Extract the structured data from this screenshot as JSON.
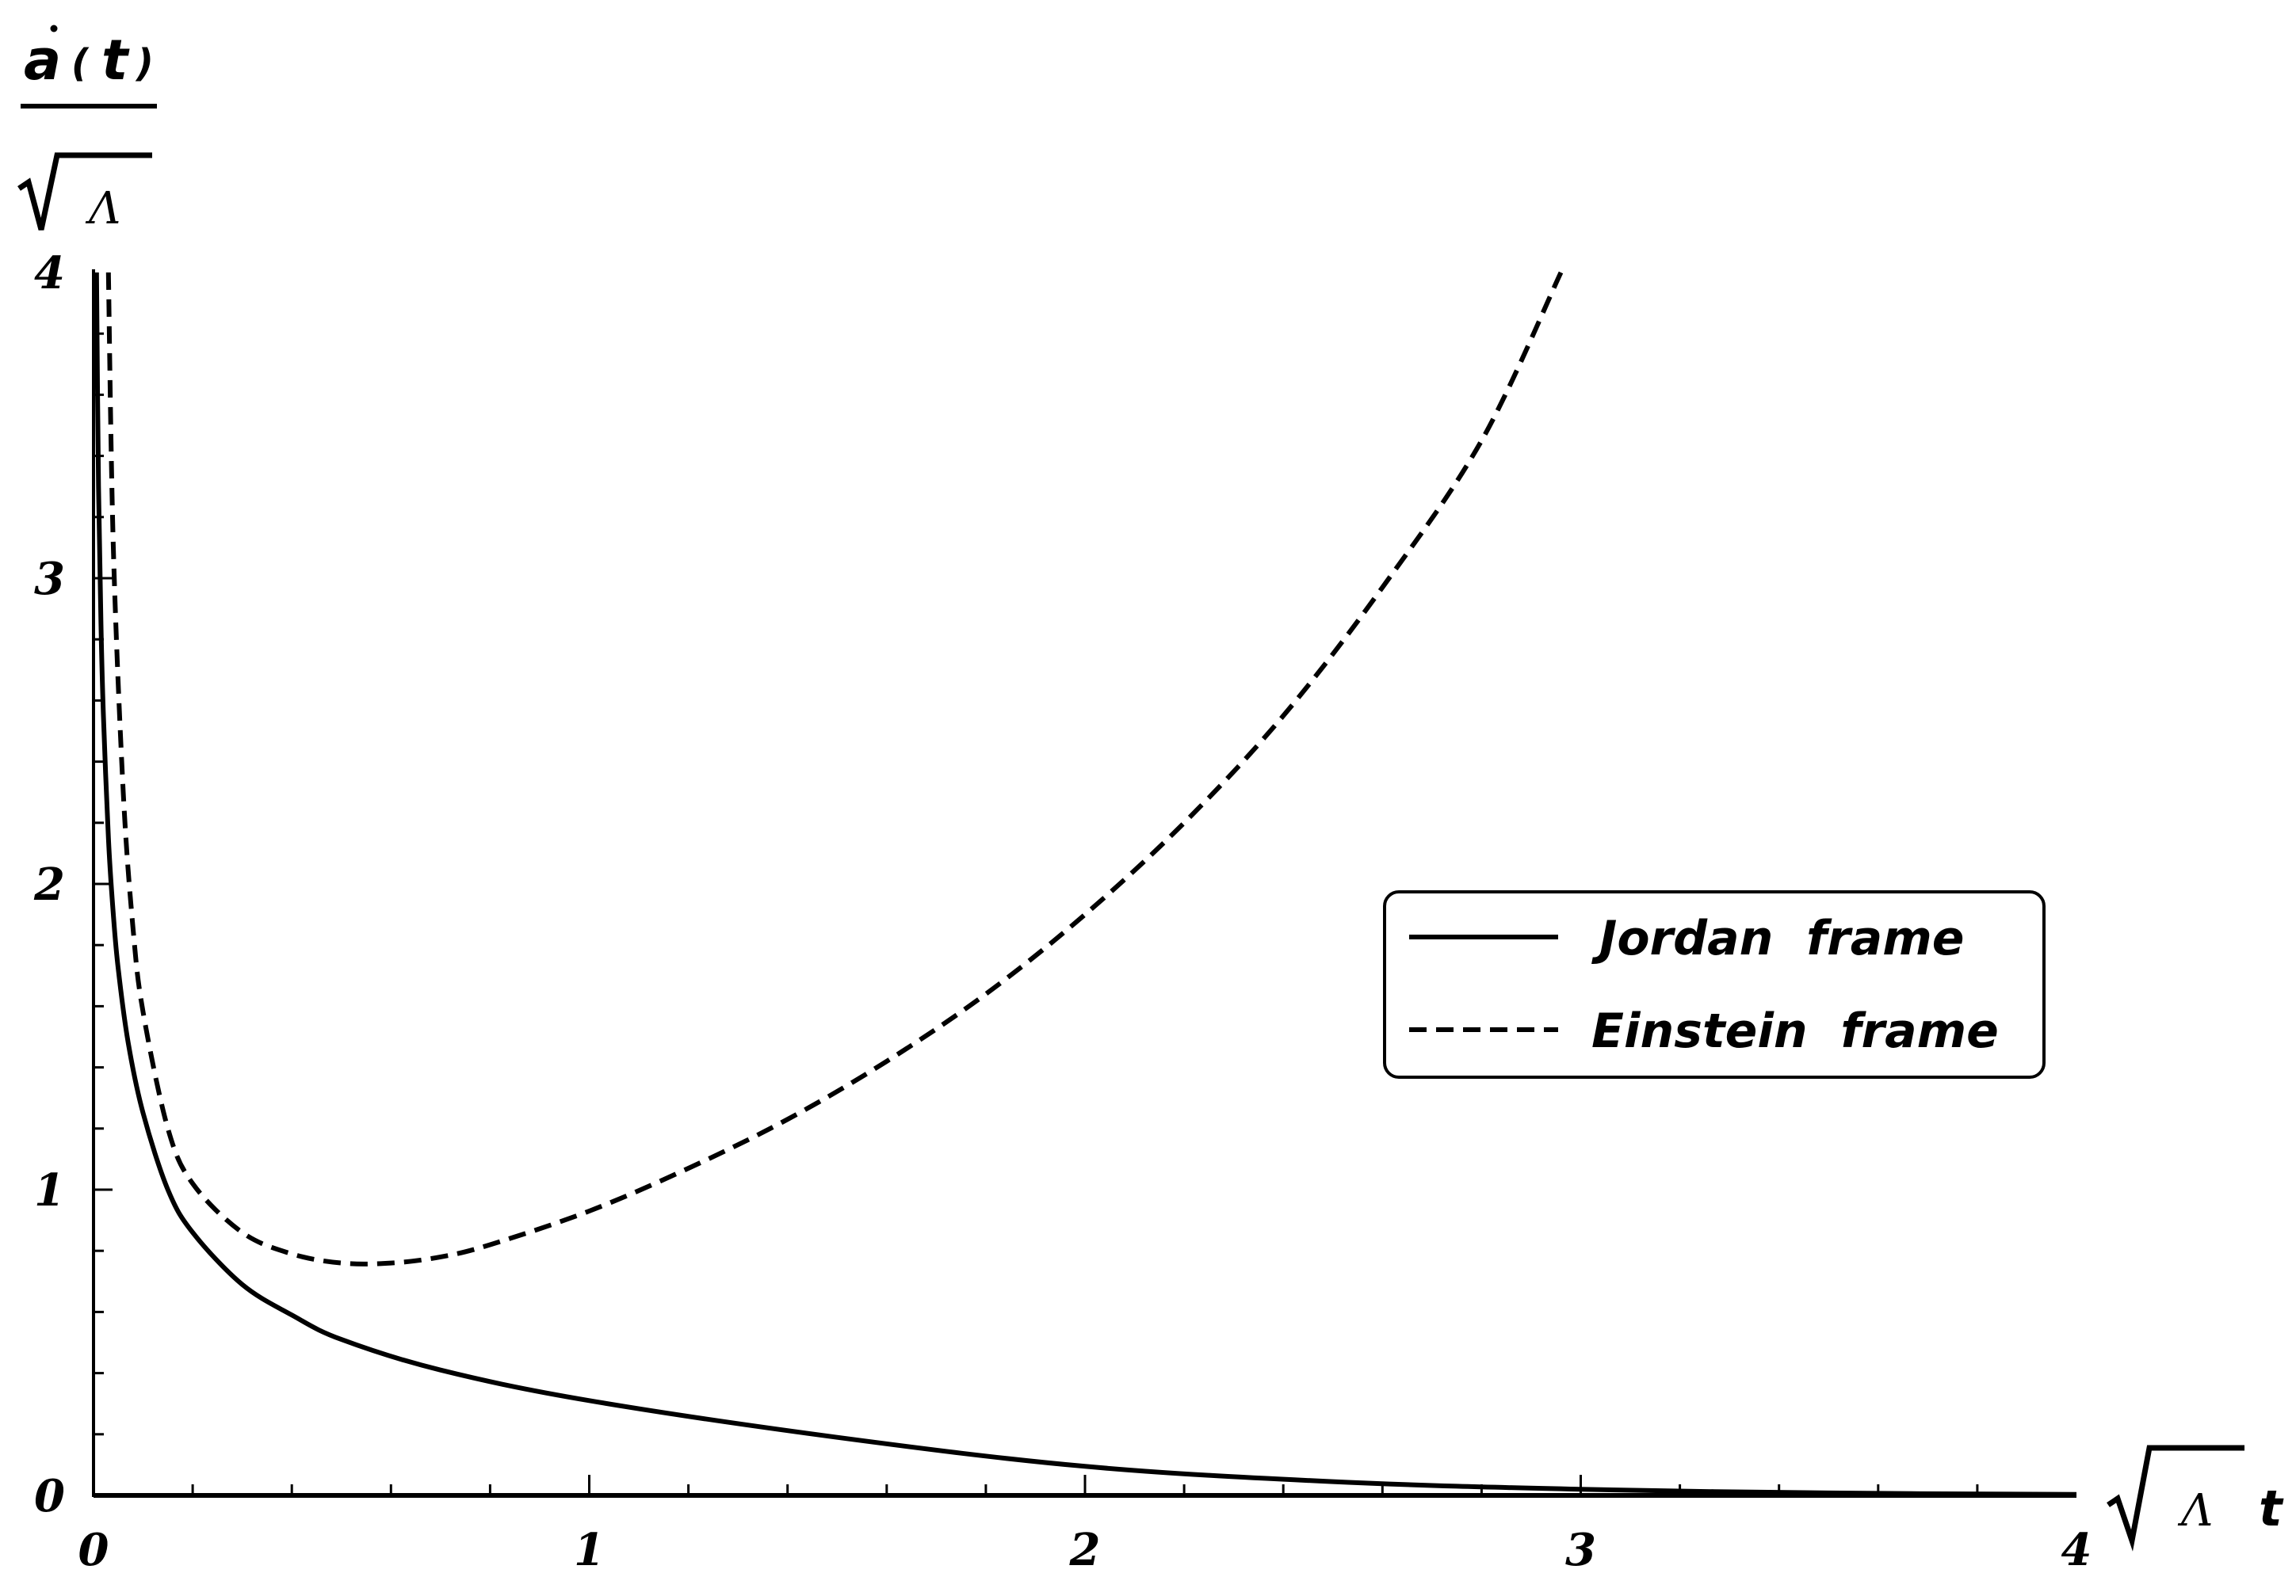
{
  "chart_data": {
    "type": "line",
    "xlabel": {
      "sqrt_symbol": "√",
      "lambda": "Λ",
      "var": "t"
    },
    "ylabel": {
      "numerator_var": "a",
      "numerator_open": "(",
      "numerator_arg": "t",
      "numerator_close": ")",
      "denominator_sqrt": "√",
      "denominator_lambda": "Λ"
    },
    "xlim": [
      0,
      4
    ],
    "ylim": [
      0,
      4
    ],
    "x_tick_labels": [
      "0",
      "1",
      "2",
      "3",
      "4"
    ],
    "y_tick_labels": [
      "0",
      "1",
      "2",
      "3",
      "4"
    ],
    "x_minor_per_major": 5,
    "y_minor_per_major": 5,
    "grid": false,
    "legend_position": "right",
    "series": [
      {
        "name": "Jordan  frame",
        "style": "solid",
        "color": "#000000",
        "x": [
          0.006,
          0.01,
          0.015,
          0.02,
          0.03,
          0.04,
          0.05,
          0.07,
          0.1,
          0.15,
          0.2,
          0.3,
          0.4,
          0.5,
          0.7,
          1.0,
          1.5,
          2.0,
          2.5,
          3.0,
          3.5,
          4.0
        ],
        "y": [
          4.0,
          3.3,
          2.85,
          2.55,
          2.15,
          1.9,
          1.72,
          1.48,
          1.25,
          1.0,
          0.86,
          0.69,
          0.59,
          0.51,
          0.41,
          0.31,
          0.19,
          0.095,
          0.045,
          0.02,
          0.008,
          0.003
        ]
      },
      {
        "name": "Einstein  frame",
        "style": "dashed",
        "color": "#000000",
        "x": [
          0.03,
          0.04,
          0.06,
          0.08,
          0.1,
          0.15,
          0.2,
          0.3,
          0.4,
          0.5,
          0.6,
          0.7,
          0.8,
          1.0,
          1.2,
          1.4,
          1.6,
          1.8,
          2.0,
          2.2,
          2.4,
          2.6,
          2.8,
          2.96
        ],
        "y": [
          4.0,
          3.1,
          2.3,
          1.85,
          1.58,
          1.2,
          1.02,
          0.86,
          0.79,
          0.76,
          0.76,
          0.78,
          0.82,
          0.93,
          1.07,
          1.23,
          1.42,
          1.64,
          1.9,
          2.2,
          2.55,
          2.97,
          3.45,
          4.0
        ]
      }
    ]
  }
}
